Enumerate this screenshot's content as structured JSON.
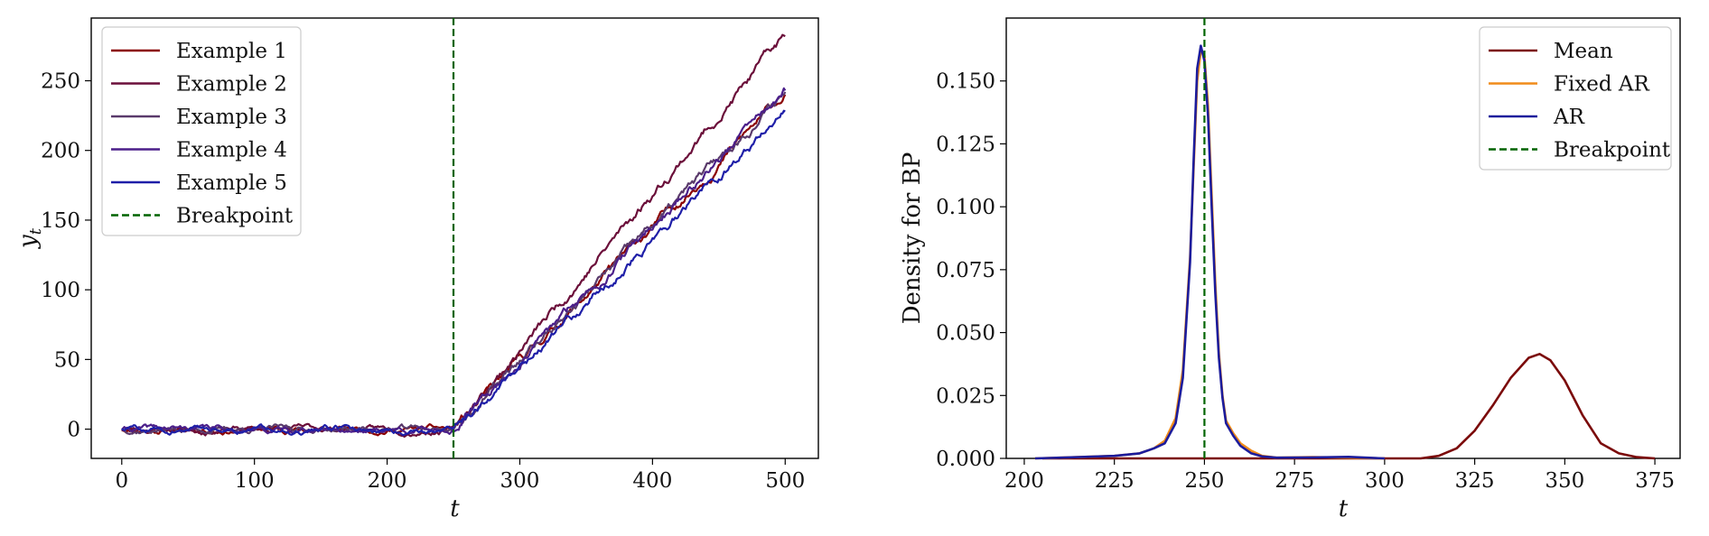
{
  "chart_data": [
    {
      "type": "line",
      "xlabel": "t",
      "ylabel": "y",
      "ylabel_sub": "t",
      "xlim": [
        -23,
        525
      ],
      "ylim": [
        -21,
        295
      ],
      "xticks": [
        0,
        100,
        200,
        300,
        400,
        500
      ],
      "yticks": [
        0,
        50,
        100,
        150,
        200,
        250
      ],
      "grid": false,
      "legend_position": "top-left",
      "breakpoint": 250,
      "series": [
        {
          "name": "Example 1",
          "color": "#8b0000",
          "end": 240,
          "seed": 11
        },
        {
          "name": "Example 2",
          "color": "#6b0f3a",
          "end": 282,
          "seed": 23
        },
        {
          "name": "Example 3",
          "color": "#5a3a6b",
          "end": 242,
          "seed": 37
        },
        {
          "name": "Example 4",
          "color": "#4b1f8a",
          "end": 243,
          "seed": 41
        },
        {
          "name": "Example 5",
          "color": "#1f1fa8",
          "end": 228,
          "seed": 59
        }
      ],
      "breakpoint_label": "Breakpoint",
      "breakpoint_color": "#006400"
    },
    {
      "type": "line",
      "xlabel": "t",
      "ylabel": "Density for BP",
      "xlim": [
        195,
        382
      ],
      "ylim": [
        0,
        0.175
      ],
      "xticks": [
        200,
        225,
        250,
        275,
        300,
        325,
        350,
        375
      ],
      "yticks": [
        "0.000",
        "0.025",
        "0.050",
        "0.075",
        "0.100",
        "0.125",
        "0.150"
      ],
      "grid": false,
      "legend_position": "top-right",
      "breakpoint": 250,
      "series": [
        {
          "name": "Mean",
          "color": "#7b0a0a",
          "x": [
            205,
            310,
            315,
            320,
            325,
            330,
            335,
            340,
            343,
            346,
            350,
            355,
            360,
            365,
            370,
            375
          ],
          "y": [
            0,
            0,
            0.001,
            0.004,
            0.011,
            0.021,
            0.032,
            0.04,
            0.0415,
            0.039,
            0.031,
            0.017,
            0.006,
            0.002,
            0.0005,
            0
          ]
        },
        {
          "name": "Fixed AR",
          "color": "#f08c1a",
          "x": [
            203,
            215,
            225,
            232,
            236,
            239,
            242,
            244,
            246,
            247,
            248,
            249,
            250,
            251,
            252,
            253,
            254,
            255,
            256,
            258,
            260,
            263,
            266,
            270,
            280,
            290,
            300
          ],
          "y": [
            0,
            0.0005,
            0.001,
            0.002,
            0.004,
            0.007,
            0.016,
            0.035,
            0.08,
            0.115,
            0.15,
            0.162,
            0.16,
            0.14,
            0.105,
            0.07,
            0.042,
            0.025,
            0.015,
            0.01,
            0.006,
            0.003,
            0.001,
            0.0003,
            0.0005,
            0.0003,
            0
          ]
        },
        {
          "name": "AR",
          "color": "#1c1c9c",
          "x": [
            203,
            215,
            225,
            232,
            236,
            239,
            242,
            244,
            246,
            247,
            248,
            249,
            250,
            251,
            252,
            253,
            254,
            255,
            256,
            258,
            260,
            263,
            266,
            270,
            280,
            290,
            300
          ],
          "y": [
            0,
            0.0005,
            0.001,
            0.002,
            0.004,
            0.006,
            0.014,
            0.032,
            0.078,
            0.118,
            0.155,
            0.164,
            0.158,
            0.136,
            0.1,
            0.066,
            0.04,
            0.024,
            0.014,
            0.009,
            0.005,
            0.002,
            0.0008,
            0.0003,
            0.0004,
            0.0006,
            0
          ]
        }
      ],
      "breakpoint_label": "Breakpoint",
      "breakpoint_color": "#006400"
    }
  ]
}
